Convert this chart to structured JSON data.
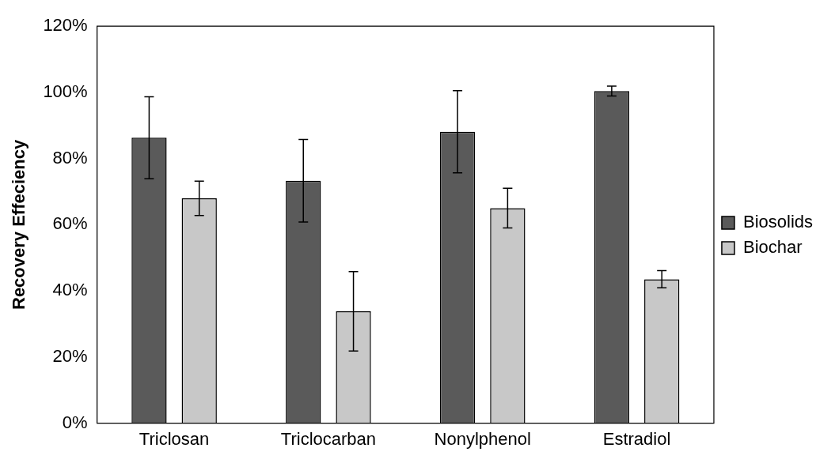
{
  "chart_data": {
    "type": "bar",
    "ylabel": "Recovery Effeciency",
    "categories": [
      "Triclosan",
      "Triclocarban",
      "Nonylphenol",
      "Estradiol"
    ],
    "series": [
      {
        "name": "Biosolids",
        "color": "#5a5a5a",
        "values": [
          86.3,
          73.3,
          88.1,
          100.4
        ],
        "errors": [
          12.4,
          12.5,
          12.4,
          1.5
        ]
      },
      {
        "name": "Biochar",
        "color": "#c8c8c8",
        "values": [
          68.0,
          33.8,
          65.0,
          43.5
        ],
        "errors": [
          5.2,
          12,
          6,
          2.6
        ]
      }
    ],
    "ylim": [
      0,
      120
    ],
    "yticks": [
      {
        "value": 0,
        "label": "0%"
      },
      {
        "value": 20,
        "label": "20%"
      },
      {
        "value": 40,
        "label": "40%"
      },
      {
        "value": 60,
        "label": "60%"
      },
      {
        "value": 80,
        "label": "80%"
      },
      {
        "value": 100,
        "label": "100%"
      },
      {
        "value": 120,
        "label": "120%"
      }
    ],
    "grid": false,
    "legend": "right"
  }
}
